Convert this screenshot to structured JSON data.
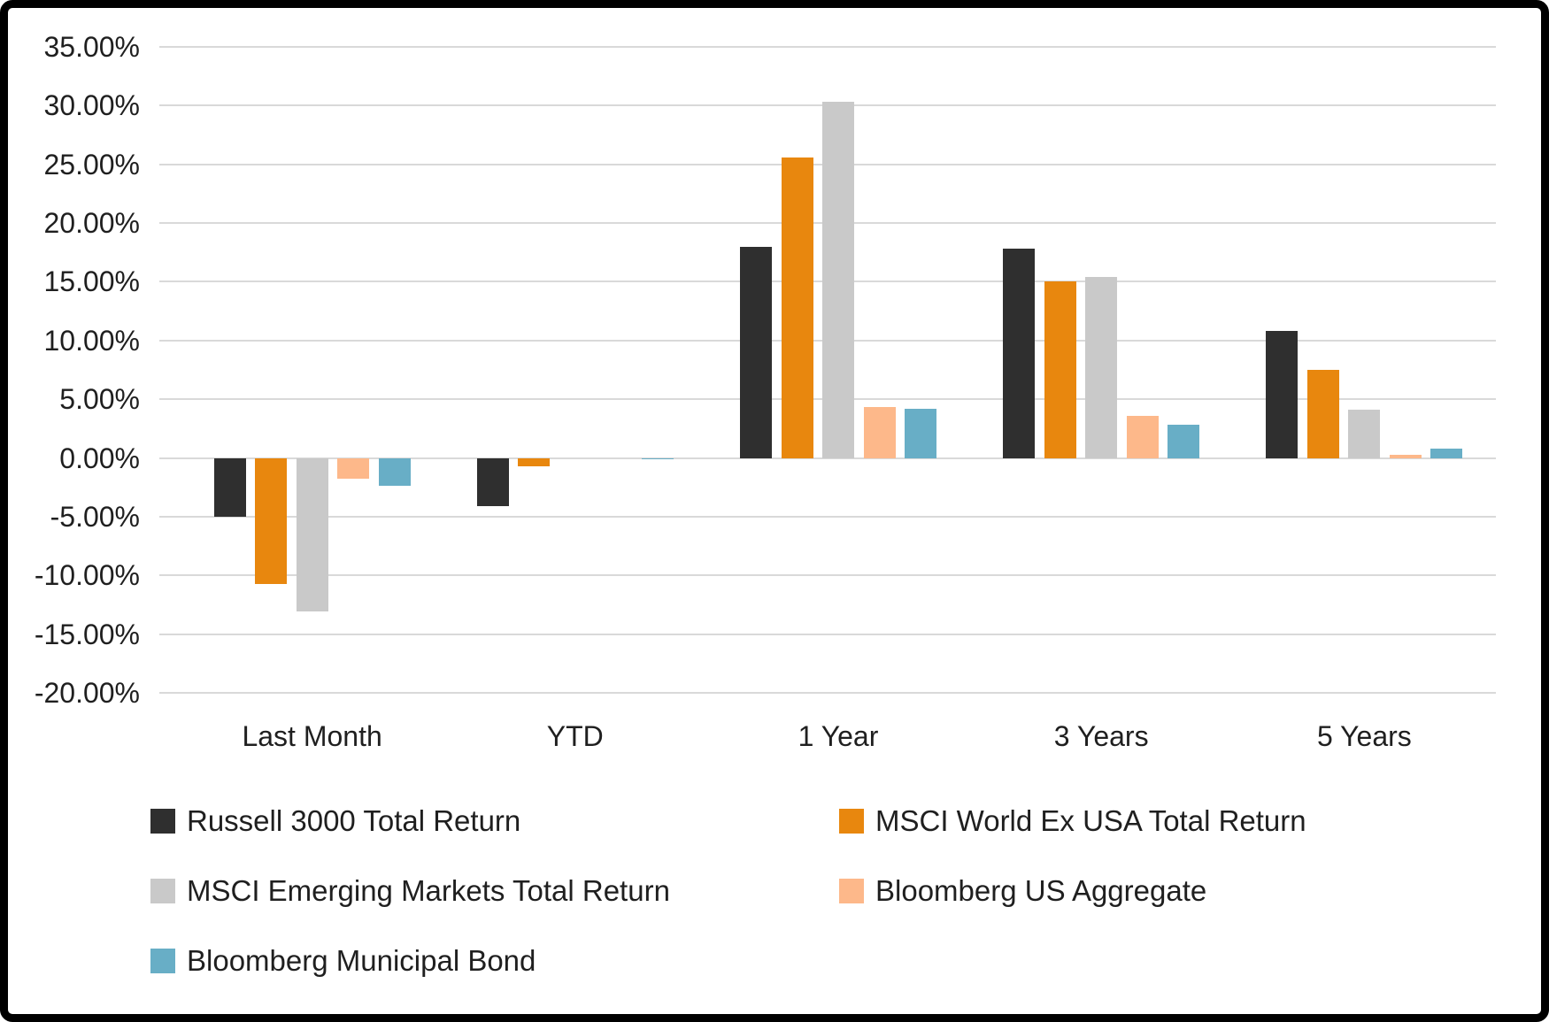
{
  "chart_data": {
    "type": "bar",
    "title": "",
    "xlabel": "",
    "ylabel": "",
    "categories": [
      "Last Month",
      "YTD",
      "1 Year",
      "3 Years",
      "5 Years"
    ],
    "series": [
      {
        "name": "Russell 3000 Total Return",
        "color": "#2F2F2F",
        "values": [
          -5.0,
          -4.1,
          18.0,
          17.8,
          10.8
        ]
      },
      {
        "name": "MSCI World Ex USA Total Return",
        "color": "#E8870E",
        "values": [
          -10.7,
          -0.7,
          25.6,
          15.0,
          7.5
        ]
      },
      {
        "name": "MSCI Emerging Markets Total Return",
        "color": "#C9C9C9",
        "values": [
          -13.1,
          0.0,
          30.3,
          15.4,
          4.1
        ]
      },
      {
        "name": "Bloomberg US Aggregate",
        "color": "#FDB88A",
        "values": [
          -1.8,
          0.0,
          4.3,
          3.6,
          0.3
        ]
      },
      {
        "name": "Bloomberg Municipal Bond",
        "color": "#68AEC6",
        "values": [
          -2.4,
          -0.1,
          4.2,
          2.8,
          0.8
        ]
      }
    ],
    "y_axis": {
      "min": -20,
      "max": 35,
      "step": 5,
      "tick_labels": [
        "35.00%",
        "30.00%",
        "25.00%",
        "20.00%",
        "15.00%",
        "10.00%",
        "5.00%",
        "0.00%",
        "-5.00%",
        "-10.00%",
        "-15.00%",
        "-20.00%"
      ]
    },
    "grid": true,
    "gridline_color": "#D9D9D9",
    "legend_position": "bottom",
    "background_color": "#FFFFFF",
    "border_color": "#000000",
    "text_color": "#1F1F1F"
  }
}
